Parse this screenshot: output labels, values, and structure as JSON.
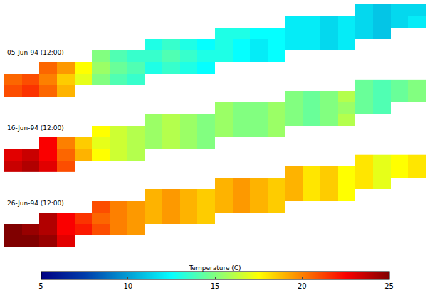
{
  "chart_data": {
    "type": "heatmap",
    "color": "Jet",
    "tick_labels": false,
    "panels": [
      {
        "title": "05-Jun-94 (12:00)",
        "cells": [
          [
            21,
            21.5,
            20.5,
            19,
            null,
            null,
            null,
            null,
            null,
            null,
            null,
            null,
            null,
            null,
            null,
            null,
            null,
            null,
            null,
            null,
            null,
            null,
            null,
            null
          ],
          [
            20.5,
            21,
            20,
            18.5,
            17,
            15,
            14,
            13.5,
            null,
            null,
            null,
            null,
            null,
            null,
            null,
            null,
            null,
            null,
            null,
            null,
            null,
            null,
            null,
            null
          ],
          [
            null,
            null,
            20.5,
            19.5,
            17.5,
            15.5,
            14.5,
            14,
            13,
            13.5,
            13,
            12.5,
            null,
            null,
            null,
            null,
            null,
            null,
            null,
            null,
            null,
            null,
            null,
            null
          ],
          [
            null,
            null,
            null,
            null,
            null,
            15,
            14,
            13.5,
            13.5,
            14,
            13.5,
            13,
            13,
            12.5,
            12,
            12.5,
            null,
            null,
            null,
            null,
            null,
            null,
            null,
            null
          ],
          [
            null,
            null,
            null,
            null,
            null,
            null,
            null,
            null,
            13,
            13.5,
            13,
            12.5,
            13,
            12.5,
            12,
            12.5,
            12,
            12,
            11.5,
            12,
            null,
            null,
            null,
            null
          ],
          [
            null,
            null,
            null,
            null,
            null,
            null,
            null,
            null,
            null,
            null,
            null,
            null,
            13,
            13,
            12.5,
            12.5,
            12,
            12,
            11.5,
            12,
            11.5,
            11,
            null,
            null
          ],
          [
            null,
            null,
            null,
            null,
            null,
            null,
            null,
            null,
            null,
            null,
            null,
            null,
            null,
            null,
            null,
            null,
            12,
            12,
            11.5,
            12,
            11.5,
            11,
            11.5,
            12
          ],
          [
            null,
            null,
            null,
            null,
            null,
            null,
            null,
            null,
            null,
            null,
            null,
            null,
            null,
            null,
            null,
            null,
            null,
            null,
            null,
            null,
            11.5,
            11,
            11.5,
            11.5
          ]
        ]
      },
      {
        "title": "16-Jun-94 (12:00)",
        "cells": [
          [
            23.5,
            24,
            23,
            21,
            null,
            null,
            null,
            null,
            null,
            null,
            null,
            null,
            null,
            null,
            null,
            null,
            null,
            null,
            null,
            null,
            null,
            null,
            null,
            null
          ],
          [
            23,
            23.5,
            22.5,
            20.5,
            19,
            17.5,
            16.5,
            16,
            null,
            null,
            null,
            null,
            null,
            null,
            null,
            null,
            null,
            null,
            null,
            null,
            null,
            null,
            null,
            null
          ],
          [
            null,
            null,
            22.5,
            20,
            18.5,
            17,
            16.5,
            16,
            15.5,
            16,
            15.5,
            15,
            null,
            null,
            null,
            null,
            null,
            null,
            null,
            null,
            null,
            null,
            null,
            null
          ],
          [
            null,
            null,
            null,
            null,
            null,
            17.5,
            16.5,
            16,
            15.5,
            16,
            15.5,
            15,
            15.5,
            15,
            15,
            15.5,
            null,
            null,
            null,
            null,
            null,
            null,
            null,
            null
          ],
          [
            null,
            null,
            null,
            null,
            null,
            null,
            null,
            null,
            15.5,
            16,
            15.5,
            15,
            15.5,
            15,
            15,
            15.5,
            15,
            14.5,
            15,
            16,
            null,
            null,
            null,
            null
          ],
          [
            null,
            null,
            null,
            null,
            null,
            null,
            null,
            null,
            null,
            null,
            null,
            null,
            15.5,
            15,
            15,
            15.5,
            15,
            14.5,
            15,
            15.5,
            14.5,
            14,
            null,
            null
          ],
          [
            null,
            null,
            null,
            null,
            null,
            null,
            null,
            null,
            null,
            null,
            null,
            null,
            null,
            null,
            null,
            null,
            15,
            14.5,
            15,
            16,
            14.5,
            14,
            14.5,
            15
          ],
          [
            null,
            null,
            null,
            null,
            null,
            null,
            null,
            null,
            null,
            null,
            null,
            null,
            null,
            null,
            null,
            null,
            null,
            null,
            null,
            null,
            14.5,
            14,
            14.5,
            15
          ]
        ]
      },
      {
        "title": "26-Jun-94 (12:00)",
        "cells": [
          [
            25,
            25,
            24.5,
            23,
            null,
            null,
            null,
            null,
            null,
            null,
            null,
            null,
            null,
            null,
            null,
            null,
            null,
            null,
            null,
            null,
            null,
            null,
            null,
            null
          ],
          [
            25,
            24.5,
            24,
            22.5,
            22,
            21,
            20,
            19.5,
            null,
            null,
            null,
            null,
            null,
            null,
            null,
            null,
            null,
            null,
            null,
            null,
            null,
            null,
            null,
            null
          ],
          [
            null,
            null,
            24,
            22.5,
            21.5,
            20.5,
            20,
            19.5,
            19,
            19.5,
            19,
            18.5,
            null,
            null,
            null,
            null,
            null,
            null,
            null,
            null,
            null,
            null,
            null,
            null
          ],
          [
            null,
            null,
            null,
            null,
            null,
            21,
            20,
            19.5,
            19,
            19.5,
            19,
            18.5,
            19,
            19.5,
            19,
            18.5,
            null,
            null,
            null,
            null,
            null,
            null,
            null,
            null
          ],
          [
            null,
            null,
            null,
            null,
            null,
            null,
            null,
            null,
            19,
            19.5,
            19,
            18.5,
            19,
            19.5,
            19,
            18.5,
            19,
            18,
            18.5,
            17.5,
            null,
            null,
            null,
            null
          ],
          [
            null,
            null,
            null,
            null,
            null,
            null,
            null,
            null,
            null,
            null,
            null,
            null,
            19,
            19.5,
            19,
            18.5,
            19,
            18,
            18.5,
            17.5,
            18,
            17,
            null,
            null
          ],
          [
            null,
            null,
            null,
            null,
            null,
            null,
            null,
            null,
            null,
            null,
            null,
            null,
            null,
            null,
            null,
            null,
            19,
            18,
            18.5,
            17.5,
            18,
            17,
            17.5,
            18
          ],
          [
            null,
            null,
            null,
            null,
            null,
            null,
            null,
            null,
            null,
            null,
            null,
            null,
            null,
            null,
            null,
            null,
            null,
            null,
            null,
            null,
            18,
            17,
            17.5,
            18
          ]
        ]
      }
    ],
    "colorbar": {
      "title": "Temperature (C)",
      "range": [
        5,
        25
      ],
      "ticks": [
        5,
        10,
        15,
        20,
        25
      ]
    }
  }
}
